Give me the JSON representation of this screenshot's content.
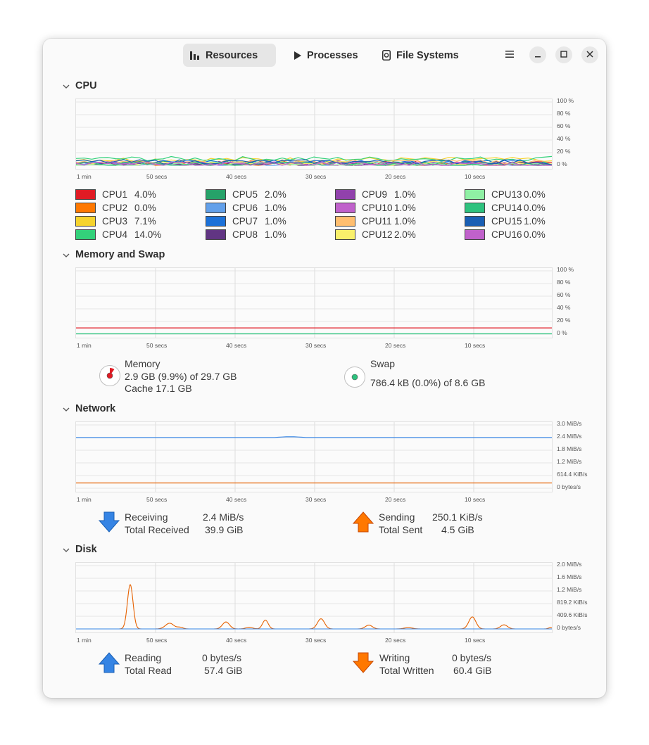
{
  "tabs": [
    {
      "label": "Resources",
      "icon": "bar-chart-icon",
      "active": true
    },
    {
      "label": "Processes",
      "icon": "play-icon",
      "active": false
    },
    {
      "label": "File Systems",
      "icon": "disk-icon",
      "active": false
    }
  ],
  "cpu": {
    "title": "CPU",
    "y_ticks": [
      "100 %",
      "80 %",
      "60 %",
      "40 %",
      "20 %",
      "0 %"
    ],
    "cores": [
      {
        "name": "CPU1",
        "value": "4.0%",
        "color": "#e01b24"
      },
      {
        "name": "CPU2",
        "value": "0.0%",
        "color": "#ff7800"
      },
      {
        "name": "CPU3",
        "value": "7.1%",
        "color": "#f6d32d"
      },
      {
        "name": "CPU4",
        "value": "14.0%",
        "color": "#33d17a"
      },
      {
        "name": "CPU5",
        "value": "2.0%",
        "color": "#26a269"
      },
      {
        "name": "CPU6",
        "value": "1.0%",
        "color": "#62a0ea"
      },
      {
        "name": "CPU7",
        "value": "1.0%",
        "color": "#1c71d8"
      },
      {
        "name": "CPU8",
        "value": "1.0%",
        "color": "#613583"
      },
      {
        "name": "CPU9",
        "value": "1.0%",
        "color": "#9141ac"
      },
      {
        "name": "CPU10",
        "value": "1.0%",
        "color": "#c061cb"
      },
      {
        "name": "CPU11",
        "value": "1.0%",
        "color": "#ffbe6f"
      },
      {
        "name": "CPU12",
        "value": "2.0%",
        "color": "#f9f06b"
      },
      {
        "name": "CPU13",
        "value": "0.0%",
        "color": "#8ff0a4"
      },
      {
        "name": "CPU14",
        "value": "0.0%",
        "color": "#2ec27e"
      },
      {
        "name": "CPU15",
        "value": "1.0%",
        "color": "#1a5fb4"
      },
      {
        "name": "CPU16",
        "value": "0.0%",
        "color": "#c061cb"
      }
    ]
  },
  "x_ticks": [
    "1 min",
    "50 secs",
    "40 secs",
    "30 secs",
    "20 secs",
    "10 secs"
  ],
  "memory": {
    "title": "Memory and Swap",
    "y_ticks": [
      "100 %",
      "80 %",
      "60 %",
      "40 %",
      "20 %",
      "0 %"
    ],
    "memory_label": "Memory",
    "memory_usage": "2.9 GB (9.9%) of 29.7 GB",
    "cache": "Cache 17.1 GB",
    "memory_fraction": 0.099,
    "memory_color": "#e01b24",
    "swap_label": "Swap",
    "swap_usage": "786.4 kB (0.0%) of 8.6 GB",
    "swap_fraction": 0.0,
    "swap_color": "#2ec27e"
  },
  "network": {
    "title": "Network",
    "y_ticks": [
      "3.0 MiB/s",
      "2.4 MiB/s",
      "1.8 MiB/s",
      "1.2 MiB/s",
      "614.4 KiB/s",
      "0 bytes/s"
    ],
    "receiving_label": "Receiving",
    "receiving_value": "2.4 MiB/s",
    "total_received_label": "Total Received",
    "total_received_value": "39.9 GiB",
    "sending_label": "Sending",
    "sending_value": "250.1 KiB/s",
    "total_sent_label": "Total Sent",
    "total_sent_value": "4.5 GiB",
    "receive_color": "#3584e4",
    "send_color": "#e66100"
  },
  "disk": {
    "title": "Disk",
    "y_ticks": [
      "2.0 MiB/s",
      "1.6 MiB/s",
      "1.2 MiB/s",
      "819.2 KiB/s",
      "409.6 KiB/s",
      "0 bytes/s"
    ],
    "reading_label": "Reading",
    "reading_value": "0 bytes/s",
    "total_read_label": "Total Read",
    "total_read_value": "57.4 GiB",
    "writing_label": "Writing",
    "writing_value": "0 bytes/s",
    "total_written_label": "Total Written",
    "total_written_value": "60.4 GiB",
    "read_color": "#3584e4",
    "write_color": "#e66100"
  }
}
